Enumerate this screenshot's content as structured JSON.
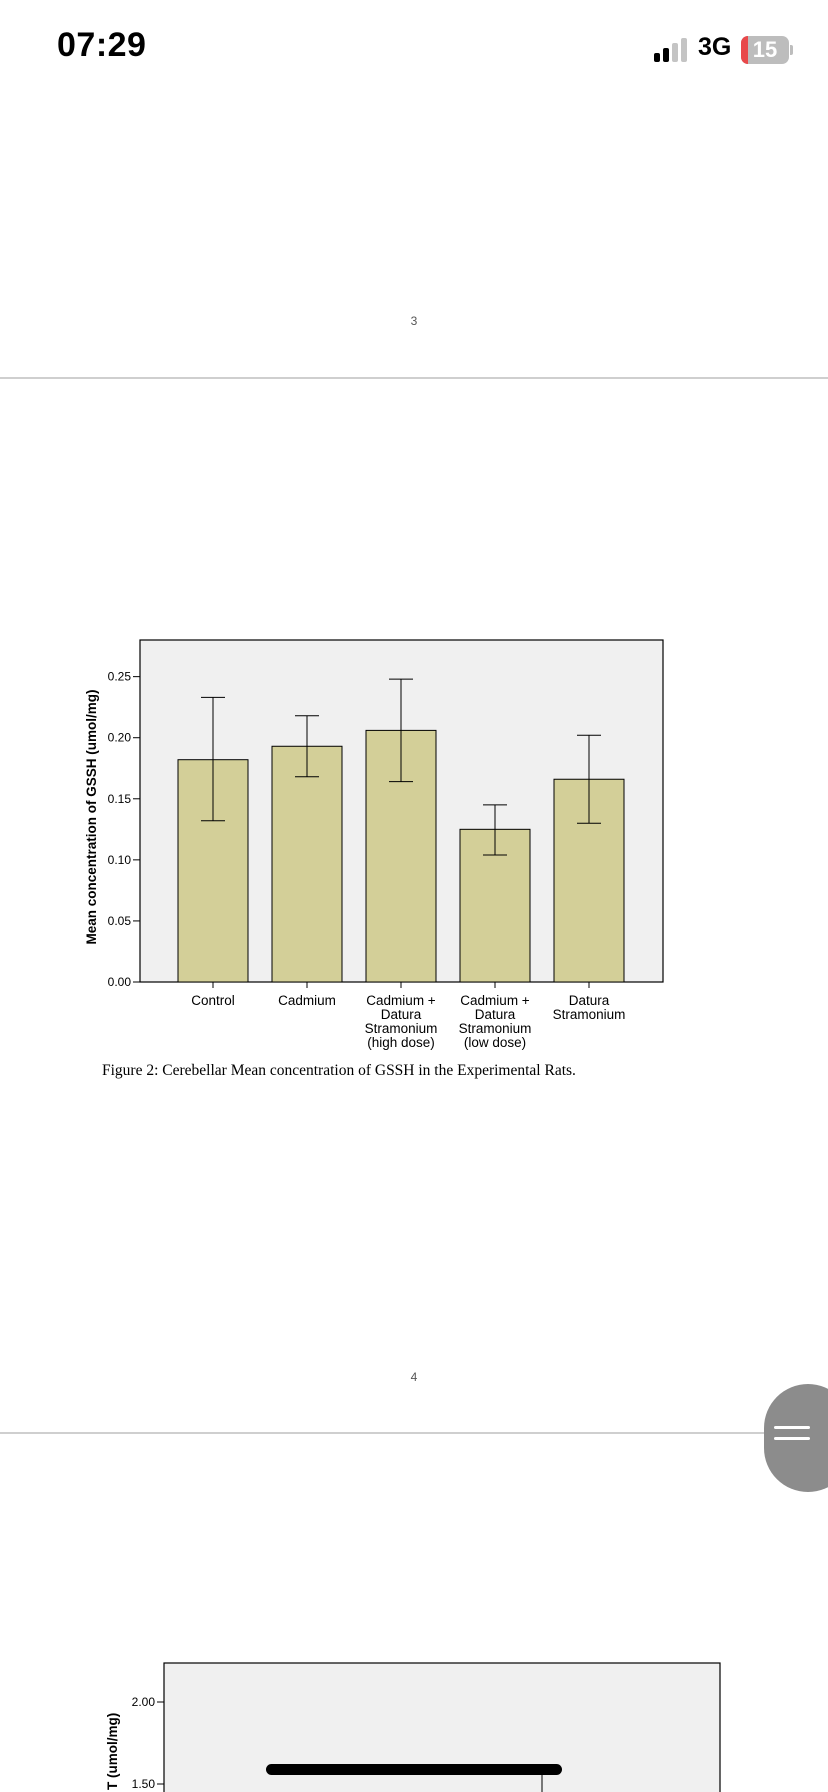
{
  "status_bar": {
    "time": "07:29",
    "network": "3G",
    "battery_level": "15",
    "battery_fraction": 0.15,
    "battery_color": "#e8484a",
    "signal_bars_active": 2,
    "signal_bars_total": 4
  },
  "document": {
    "page_number_top": "3",
    "page_number_bottom": "4",
    "figure_caption": "Figure 2: Cerebellar Mean concentration of GSSH in the Experimental Rats."
  },
  "chart_data": [
    {
      "type": "bar",
      "title": "",
      "xlabel": "",
      "ylabel": "Mean concentration of GSSH (umol/mg)",
      "ylim": [
        0,
        0.28
      ],
      "yticks": [
        "0.00",
        "0.05",
        "0.10",
        "0.15",
        "0.20",
        "0.25"
      ],
      "ytick_values": [
        0,
        0.05,
        0.1,
        0.15,
        0.2,
        0.25
      ],
      "categories": [
        [
          "Control"
        ],
        [
          "Cadmium"
        ],
        [
          "Cadmium +",
          "Datura",
          "Stramonium",
          "(high dose)"
        ],
        [
          "Cadmium +",
          "Datura",
          "Stramonium",
          "(low dose)"
        ],
        [
          "Datura",
          "Stramonium"
        ]
      ],
      "values": [
        0.182,
        0.193,
        0.206,
        0.125,
        0.166
      ],
      "error_low": [
        0.132,
        0.168,
        0.164,
        0.104,
        0.13
      ],
      "error_high": [
        0.233,
        0.218,
        0.248,
        0.145,
        0.202
      ],
      "bar_color": "#d3cf98",
      "background": "#f0f0f0",
      "grid": false,
      "legend": "none"
    },
    {
      "type": "bar",
      "partially_visible": true,
      "ylabel": "T (umol/mg)",
      "yticks": [
        "2.00",
        "1.50"
      ],
      "ytick_values": [
        2.0,
        1.5
      ],
      "background": "#f0f0f0"
    }
  ],
  "scroll_handle": {
    "icon": "drag-handle-icon"
  }
}
